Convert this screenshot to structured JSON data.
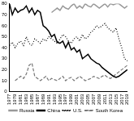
{
  "chart_data": {
    "type": "line",
    "categories": [
      "1977",
      null,
      "1979",
      null,
      "1981",
      null,
      "1983",
      null,
      "1985",
      null,
      "1987",
      null,
      "1989",
      null,
      "1991",
      null,
      "1993",
      null,
      "1995",
      null,
      "1997",
      null,
      "1999",
      null,
      "2001",
      null,
      "2003",
      null,
      "2005",
      null,
      "2007",
      null,
      "2009",
      null,
      "2011",
      null,
      "2013",
      null,
      "2015",
      null,
      "2017",
      null,
      "2019"
    ],
    "series": [
      {
        "name": "Russia",
        "color": "#999999",
        "line_style": "solid",
        "values": [
          null,
          null,
          null,
          null,
          null,
          null,
          null,
          null,
          null,
          null,
          null,
          null,
          null,
          null,
          null,
          72,
          74,
          76,
          74,
          78,
          76,
          75,
          78,
          80,
          76,
          78,
          76,
          80,
          78,
          77,
          80,
          78,
          76,
          78,
          80,
          77,
          80,
          79,
          80,
          80,
          78,
          76,
          78
        ]
      },
      {
        "name": "China",
        "color": "#000000",
        "line_style": "solid",
        "values": [
          80,
          70,
          76,
          72,
          74,
          75,
          78,
          72,
          76,
          70,
          74,
          72,
          60,
          58,
          55,
          50,
          52,
          45,
          44,
          46,
          40,
          45,
          38,
          40,
          36,
          38,
          30,
          32,
          34,
          30,
          28,
          26,
          25,
          22,
          20,
          18,
          16,
          14,
          13,
          14,
          16,
          18,
          20
        ]
      },
      {
        "name": "U.S.",
        "color": "#000000",
        "line_style": "dotted",
        "values": [
          42,
          45,
          40,
          44,
          46,
          42,
          50,
          44,
          42,
          48,
          46,
          44,
          48,
          46,
          50,
          48,
          46,
          44,
          48,
          52,
          50,
          46,
          44,
          48,
          50,
          46,
          52,
          48,
          50,
          54,
          56,
          60,
          58,
          60,
          62,
          58,
          56,
          54,
          58,
          48,
          40,
          30,
          28
        ]
      },
      {
        "name": "South Korea",
        "color": "#777777",
        "line_style": "dashed",
        "values": [
          null,
          null,
          10,
          12,
          14,
          12,
          16,
          24,
          26,
          14,
          12,
          10,
          12,
          14,
          10,
          12,
          11,
          10,
          12,
          14,
          10,
          12,
          13,
          10,
          12,
          14,
          12,
          10,
          11,
          12,
          14,
          13,
          12,
          14,
          15,
          13,
          12,
          14,
          16,
          18,
          20,
          22,
          24
        ]
      }
    ],
    "ylim": [
      0,
      80
    ],
    "yticks": [
      0,
      10,
      20,
      30,
      40,
      50,
      60,
      70,
      80
    ],
    "grid": false,
    "legend": "bottom"
  }
}
